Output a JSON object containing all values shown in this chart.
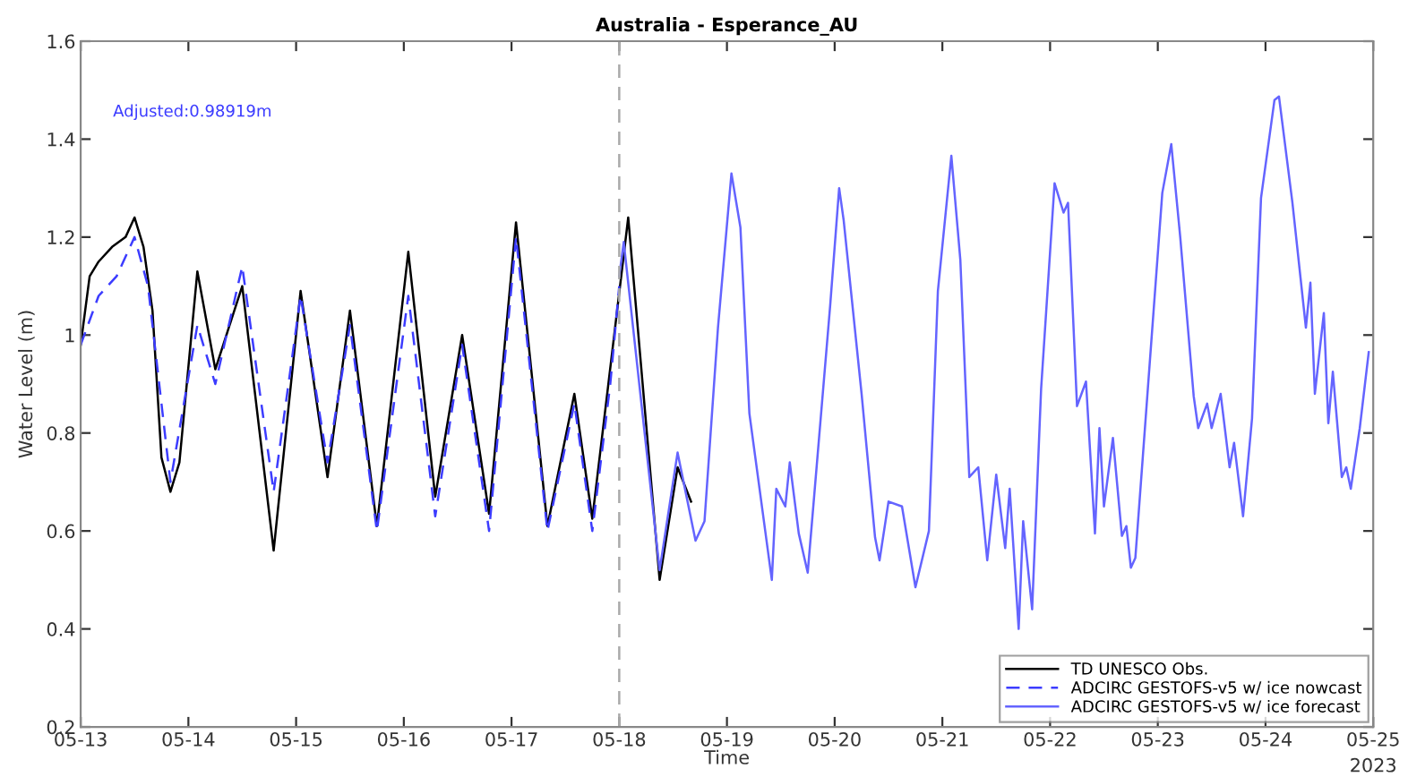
{
  "chart_data": {
    "type": "line",
    "title": "Australia - Esperance_AU",
    "xlabel": "Time",
    "ylabel": "Water Level (m)",
    "annotations": [
      "Adjusted:0.98919m",
      "2023"
    ],
    "xlim": [
      "2023-05-13",
      "2023-05-25"
    ],
    "ylim": [
      0.2,
      1.6
    ],
    "yticks": [
      0.2,
      0.4,
      0.6,
      0.8,
      1,
      1.2,
      1.4,
      1.6
    ],
    "xticks": [
      {
        "value": "2023-05-13",
        "label": "05-13"
      },
      {
        "value": "2023-05-14",
        "label": "05-14"
      },
      {
        "value": "2023-05-15",
        "label": "05-15"
      },
      {
        "value": "2023-05-16",
        "label": "05-16"
      },
      {
        "value": "2023-05-17",
        "label": "05-17"
      },
      {
        "value": "2023-05-18",
        "label": "05-18"
      },
      {
        "value": "2023-05-19",
        "label": "05-19"
      },
      {
        "value": "2023-05-20",
        "label": "05-20"
      },
      {
        "value": "2023-05-21",
        "label": "05-21"
      },
      {
        "value": "2023-05-22",
        "label": "05-22"
      },
      {
        "value": "2023-05-23",
        "label": "05-23"
      },
      {
        "value": "2023-05-24",
        "label": "05-24"
      },
      {
        "value": "2023-05-25",
        "label": "05-25"
      }
    ],
    "grid": false,
    "legend": "bottom right",
    "marker": "none",
    "ref_lines": [
      {
        "axis": "x",
        "value": "2023-05-18",
        "label": null,
        "color": "#aaaaaa",
        "line_style": "dashed"
      }
    ],
    "series": [
      {
        "name": "TD UNESCO Obs.",
        "color": "#000000",
        "line_style": "solid",
        "x": [
          "2023-05-13T00:00",
          "2023-05-13T02:00",
          "2023-05-13T04:00",
          "2023-05-13T07:00",
          "2023-05-13T10:00",
          "2023-05-13T12:00",
          "2023-05-13T14:00",
          "2023-05-13T16:00",
          "2023-05-13T18:00",
          "2023-05-13T20:00",
          "2023-05-13T22:00",
          "2023-05-14T02:00",
          "2023-05-14T06:00",
          "2023-05-14T12:00",
          "2023-05-14T19:00",
          "2023-05-15T01:00",
          "2023-05-15T07:00",
          "2023-05-15T12:00",
          "2023-05-15T18:00",
          "2023-05-16T01:00",
          "2023-05-16T07:00",
          "2023-05-16T13:00",
          "2023-05-16T19:00",
          "2023-05-17T01:00",
          "2023-05-17T08:00",
          "2023-05-17T14:00",
          "2023-05-17T18:00",
          "2023-05-18T02:00",
          "2023-05-18T09:00",
          "2023-05-18T13:00",
          "2023-05-18T16:00"
        ],
        "values": [
          0.98,
          1.12,
          1.15,
          1.18,
          1.2,
          1.24,
          1.18,
          1.05,
          0.75,
          0.68,
          0.74,
          1.13,
          0.93,
          1.1,
          0.56,
          1.09,
          0.71,
          1.05,
          0.61,
          1.17,
          0.67,
          1.0,
          0.635,
          1.23,
          0.61,
          0.88,
          0.625,
          1.24,
          0.5,
          0.73,
          0.66
        ]
      },
      {
        "name": "ADCIRC GESTOFS-v5 w/ ice nowcast",
        "color": "#3c3cff",
        "line_style": "dashed",
        "x": [
          "2023-05-13T00:00",
          "2023-05-13T04:00",
          "2023-05-13T08:00",
          "2023-05-13T12:00",
          "2023-05-13T15:00",
          "2023-05-13T20:00",
          "2023-05-14T02:00",
          "2023-05-14T06:00",
          "2023-05-14T12:00",
          "2023-05-14T19:00",
          "2023-05-15T01:00",
          "2023-05-15T07:00",
          "2023-05-15T12:00",
          "2023-05-15T18:00",
          "2023-05-16T01:00",
          "2023-05-16T07:00",
          "2023-05-16T13:00",
          "2023-05-16T19:00",
          "2023-05-17T01:00",
          "2023-05-17T08:00",
          "2023-05-17T14:00",
          "2023-05-17T18:00",
          "2023-05-17T22:00",
          "2023-05-18T00:00"
        ],
        "values": [
          0.98,
          1.08,
          1.12,
          1.2,
          1.1,
          0.7,
          1.02,
          0.9,
          1.14,
          0.68,
          1.08,
          0.74,
          1.02,
          0.6,
          1.08,
          0.63,
          0.98,
          0.6,
          1.2,
          0.6,
          0.86,
          0.6,
          0.9,
          1.1
        ]
      },
      {
        "name": "ADCIRC GESTOFS-v5 w/ ice forecast",
        "color": "#6464ff",
        "line_style": "solid",
        "x": [
          "2023-05-18T00:00",
          "2023-05-18T01:00",
          "2023-05-18T09:00",
          "2023-05-18T13:00",
          "2023-05-18T17:00",
          "2023-05-18T19:00",
          "2023-05-18T22:00",
          "2023-05-19T01:00",
          "2023-05-19T03:00",
          "2023-05-19T05:00",
          "2023-05-19T10:00",
          "2023-05-19T11:00",
          "2023-05-19T13:00",
          "2023-05-19T14:00",
          "2023-05-19T16:00",
          "2023-05-19T18:00",
          "2023-05-19T23:00",
          "2023-05-20T01:00",
          "2023-05-20T02:00",
          "2023-05-20T06:00",
          "2023-05-20T09:00",
          "2023-05-20T10:00",
          "2023-05-20T12:00",
          "2023-05-20T15:00",
          "2023-05-20T18:00",
          "2023-05-20T21:00",
          "2023-05-20T23:00",
          "2023-05-21T02:00",
          "2023-05-21T04:00",
          "2023-05-21T06:00",
          "2023-05-21T08:00",
          "2023-05-21T10:00",
          "2023-05-21T12:00",
          "2023-05-21T14:00",
          "2023-05-21T15:00",
          "2023-05-21T17:00",
          "2023-05-21T18:00",
          "2023-05-21T20:00",
          "2023-05-21T22:00",
          "2023-05-22T01:00",
          "2023-05-22T03:00",
          "2023-05-22T04:00",
          "2023-05-22T06:00",
          "2023-05-22T08:00",
          "2023-05-22T10:00",
          "2023-05-22T11:00",
          "2023-05-22T12:00",
          "2023-05-22T14:00",
          "2023-05-22T16:00",
          "2023-05-22T17:00",
          "2023-05-22T18:00",
          "2023-05-22T19:00",
          "2023-05-23T01:00",
          "2023-05-23T03:00",
          "2023-05-23T05:00",
          "2023-05-23T08:00",
          "2023-05-23T09:00",
          "2023-05-23T11:00",
          "2023-05-23T12:00",
          "2023-05-23T14:00",
          "2023-05-23T16:00",
          "2023-05-23T17:00",
          "2023-05-23T19:00",
          "2023-05-23T21:00",
          "2023-05-23T23:00",
          "2023-05-24T02:00",
          "2023-05-24T03:00",
          "2023-05-24T06:00",
          "2023-05-24T09:00",
          "2023-05-24T10:00",
          "2023-05-24T11:00",
          "2023-05-24T13:00",
          "2023-05-24T14:00",
          "2023-05-24T15:00",
          "2023-05-24T17:00",
          "2023-05-24T18:00",
          "2023-05-24T19:00",
          "2023-05-24T21:00",
          "2023-05-24T23:00"
        ],
        "values": [
          1.12,
          1.19,
          0.52,
          0.76,
          0.58,
          0.62,
          1.015,
          1.33,
          1.22,
          0.84,
          0.5,
          0.686,
          0.65,
          0.74,
          0.595,
          0.515,
          1.06,
          1.3,
          1.235,
          0.88,
          0.587,
          0.54,
          0.66,
          0.65,
          0.485,
          0.6,
          1.09,
          1.366,
          1.154,
          0.71,
          0.73,
          0.54,
          0.715,
          0.565,
          0.686,
          0.4,
          0.62,
          0.44,
          0.89,
          1.31,
          1.25,
          1.27,
          0.855,
          0.905,
          0.595,
          0.81,
          0.65,
          0.79,
          0.59,
          0.61,
          0.525,
          0.545,
          1.29,
          1.39,
          1.2,
          0.875,
          0.81,
          0.86,
          0.81,
          0.88,
          0.73,
          0.78,
          0.63,
          0.83,
          1.28,
          1.48,
          1.487,
          1.27,
          1.015,
          1.107,
          0.88,
          1.045,
          0.82,
          0.925,
          0.71,
          0.73,
          0.686,
          0.81,
          0.965
        ]
      }
    ]
  }
}
